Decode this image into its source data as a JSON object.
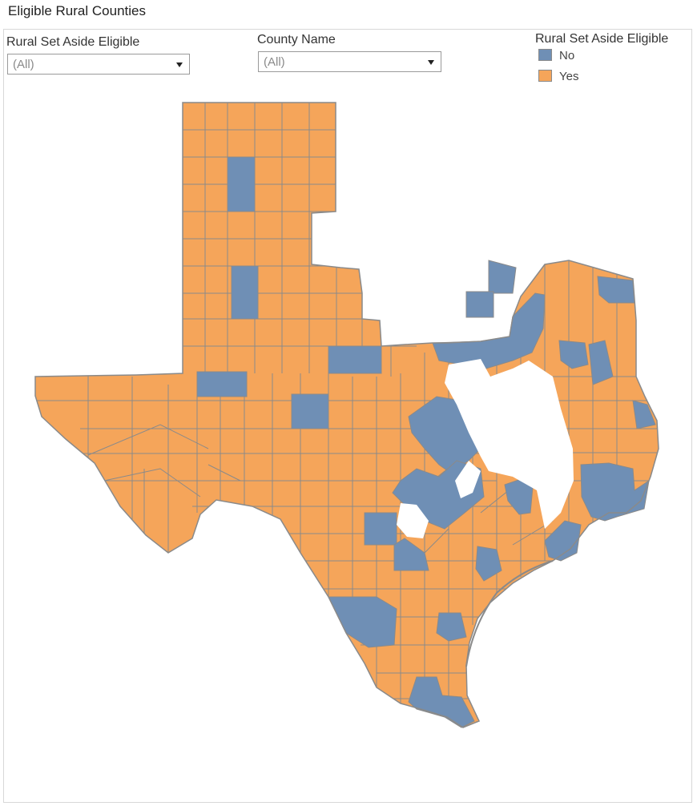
{
  "title": "Eligible Rural Counties",
  "filters": {
    "eligible": {
      "label": "Rural Set Aside Eligible",
      "value": "(All)"
    },
    "county": {
      "label": "County Name",
      "value": "(All)"
    }
  },
  "legend": {
    "title": "Rural Set Aside Eligible",
    "items": [
      {
        "label": "No",
        "color": "#6f8fb5"
      },
      {
        "label": "Yes",
        "color": "#f5a55a"
      }
    ]
  },
  "map": {
    "border_color": "#8a8a8a",
    "no_color": "#6f8fb5",
    "yes_color": "#f5a55a"
  }
}
